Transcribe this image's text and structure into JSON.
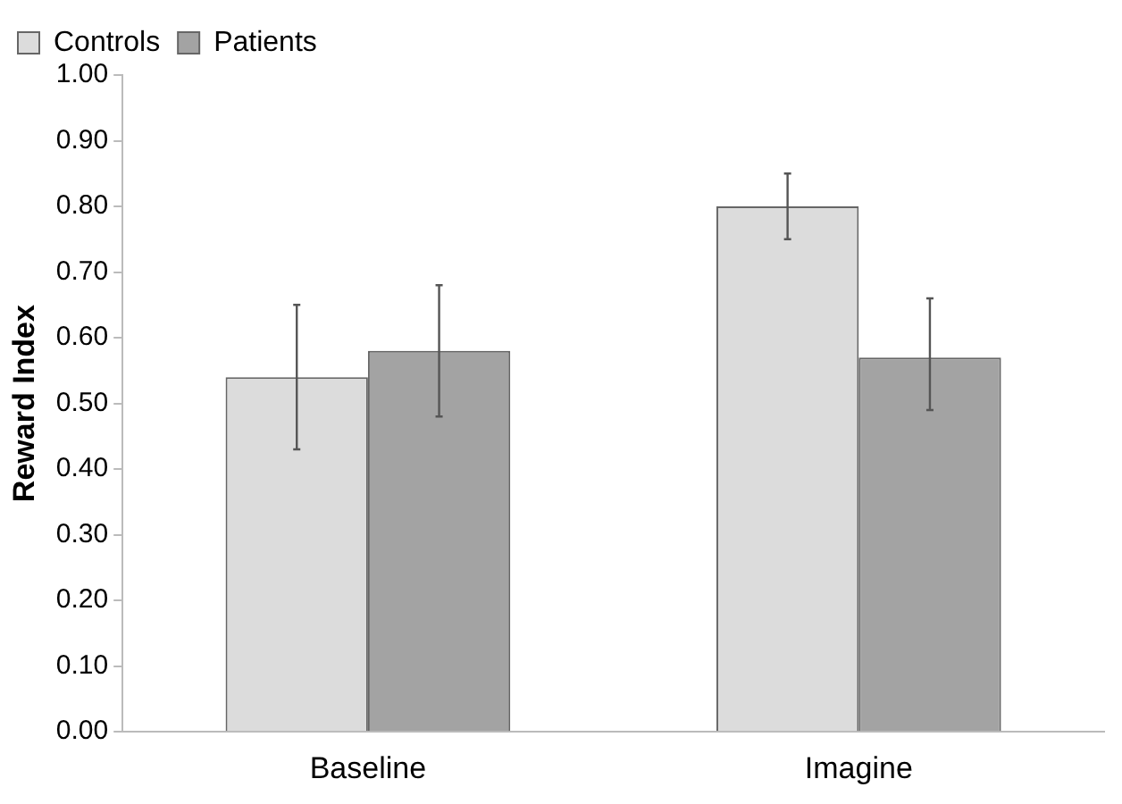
{
  "chart_data": {
    "type": "bar",
    "ylabel": "Reward Index",
    "categories": [
      "Baseline",
      "Imagine"
    ],
    "series": [
      {
        "name": "Controls",
        "color": "#dcdcdc",
        "values": [
          0.54,
          0.8
        ],
        "errors": [
          [
            0.43,
            0.65
          ],
          [
            0.75,
            0.85
          ]
        ]
      },
      {
        "name": "Patients",
        "color": "#a3a3a3",
        "values": [
          0.58,
          0.57
        ],
        "errors": [
          [
            0.48,
            0.68
          ],
          [
            0.49,
            0.66
          ]
        ]
      }
    ],
    "ylim": [
      0,
      1
    ],
    "yticks": [
      {
        "value": 0,
        "label": "0.00"
      },
      {
        "value": 0.1,
        "label": "0.10"
      },
      {
        "value": 0.2,
        "label": "0.20"
      },
      {
        "value": 0.3,
        "label": "0.30"
      },
      {
        "value": 0.4,
        "label": "0.40"
      },
      {
        "value": 0.5,
        "label": "0.50"
      },
      {
        "value": 0.6,
        "label": "0.60"
      },
      {
        "value": 0.7,
        "label": "0.70"
      },
      {
        "value": 0.8,
        "label": "0.80"
      },
      {
        "value": 0.9,
        "label": "0.90"
      },
      {
        "value": 1,
        "label": "1.00"
      }
    ],
    "grid": false,
    "legend": "top left"
  }
}
